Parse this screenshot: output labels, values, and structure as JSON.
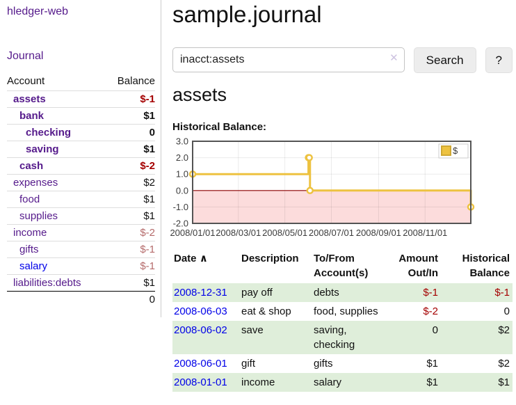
{
  "colors": {
    "link-purple": "#551a8b",
    "link-blue": "#0000e8",
    "neg-strong": "#a40000",
    "neg-soft": "#b56b6b",
    "row-green": "#dfeeda",
    "chart-line": "#edc240",
    "chart-neg-fill": "#fcdcdc",
    "chart-zero": "#8b0000",
    "swatch-border": "#cfa833"
  },
  "app": {
    "title": "hledger-web"
  },
  "sidebar": {
    "journal_label": "Journal",
    "accounts": {
      "account_header": "Account",
      "balance_header": "Balance",
      "rows": [
        {
          "account": "assets",
          "balance": "$-1",
          "level": 1,
          "bold": true,
          "neg": "strong",
          "link": "purple"
        },
        {
          "account": "bank",
          "balance": "$1",
          "level": 2,
          "bold": true,
          "neg": "none",
          "link": "purple"
        },
        {
          "account": "checking",
          "balance": "0",
          "level": 3,
          "bold": true,
          "neg": "none",
          "link": "purple"
        },
        {
          "account": "saving",
          "balance": "$1",
          "level": 3,
          "bold": true,
          "neg": "none",
          "link": "purple"
        },
        {
          "account": "cash",
          "balance": "$-2",
          "level": 2,
          "bold": true,
          "neg": "strong",
          "link": "purple"
        },
        {
          "account": "expenses",
          "balance": "$2",
          "level": 1,
          "bold": false,
          "neg": "none",
          "link": "purple"
        },
        {
          "account": "food",
          "balance": "$1",
          "level": 2,
          "bold": false,
          "neg": "none",
          "link": "purple"
        },
        {
          "account": "supplies",
          "balance": "$1",
          "level": 2,
          "bold": false,
          "neg": "none",
          "link": "purple"
        },
        {
          "account": "income",
          "balance": "$-2",
          "level": 1,
          "bold": false,
          "neg": "soft",
          "link": "purple"
        },
        {
          "account": "gifts",
          "balance": "$-1",
          "level": 2,
          "bold": false,
          "neg": "soft",
          "link": "purple"
        },
        {
          "account": "salary",
          "balance": "$-1",
          "level": 2,
          "bold": false,
          "neg": "soft",
          "link": "blue"
        },
        {
          "account": "liabilities:debts",
          "balance": "$1",
          "level": 1,
          "bold": false,
          "neg": "none",
          "link": "purple"
        }
      ],
      "total": "0"
    }
  },
  "main": {
    "title": "sample.journal",
    "search": {
      "value": "inacct:assets",
      "clear_icon": "✕",
      "button_label": "Search",
      "help_label": "?"
    },
    "account_heading": "assets",
    "chart_label": "Historical Balance:"
  },
  "chart_data": {
    "type": "line",
    "step": true,
    "series_name": "$",
    "x": [
      "2008-01-01",
      "2008-06-01",
      "2008-06-02",
      "2008-06-03",
      "2008-12-31"
    ],
    "values": [
      1,
      2,
      2,
      0,
      -1
    ],
    "x_range": [
      "2008-01-01",
      "2008-12-31"
    ],
    "ylim": [
      -2,
      3
    ],
    "y_ticks": [
      "3.0",
      "2.0",
      "1.0",
      "0.0",
      "-1.0",
      "-2.0"
    ],
    "x_ticks": [
      "2008/01/01",
      "2008/03/01",
      "2008/05/01",
      "2008/07/01",
      "2008/09/01",
      "2008/11/01"
    ],
    "legend_position": "top-right",
    "grid": true,
    "negative_region_shaded": true
  },
  "register": {
    "headers": {
      "date": "Date",
      "sort_icon": "∧",
      "description": "Description",
      "accounts": "To/From Account(s)",
      "amount": "Amount Out/In",
      "balance": "Historical Balance"
    },
    "rows": [
      {
        "date": "2008-12-31",
        "description": "pay off",
        "accounts": "debts",
        "amount": "$-1",
        "amount_negative": true,
        "balance": "$-1",
        "balance_negative": true
      },
      {
        "date": "2008-06-03",
        "description": "eat & shop",
        "accounts": "food, supplies",
        "amount": "$-2",
        "amount_negative": true,
        "balance": "0",
        "balance_negative": false
      },
      {
        "date": "2008-06-02",
        "description": "save",
        "accounts": "saving, checking",
        "amount": "0",
        "amount_negative": false,
        "balance": "$2",
        "balance_negative": false
      },
      {
        "date": "2008-06-01",
        "description": "gift",
        "accounts": "gifts",
        "amount": "$1",
        "amount_negative": false,
        "balance": "$2",
        "balance_negative": false
      },
      {
        "date": "2008-01-01",
        "description": "income",
        "accounts": "salary",
        "amount": "$1",
        "amount_negative": false,
        "balance": "$1",
        "balance_negative": false
      }
    ]
  }
}
